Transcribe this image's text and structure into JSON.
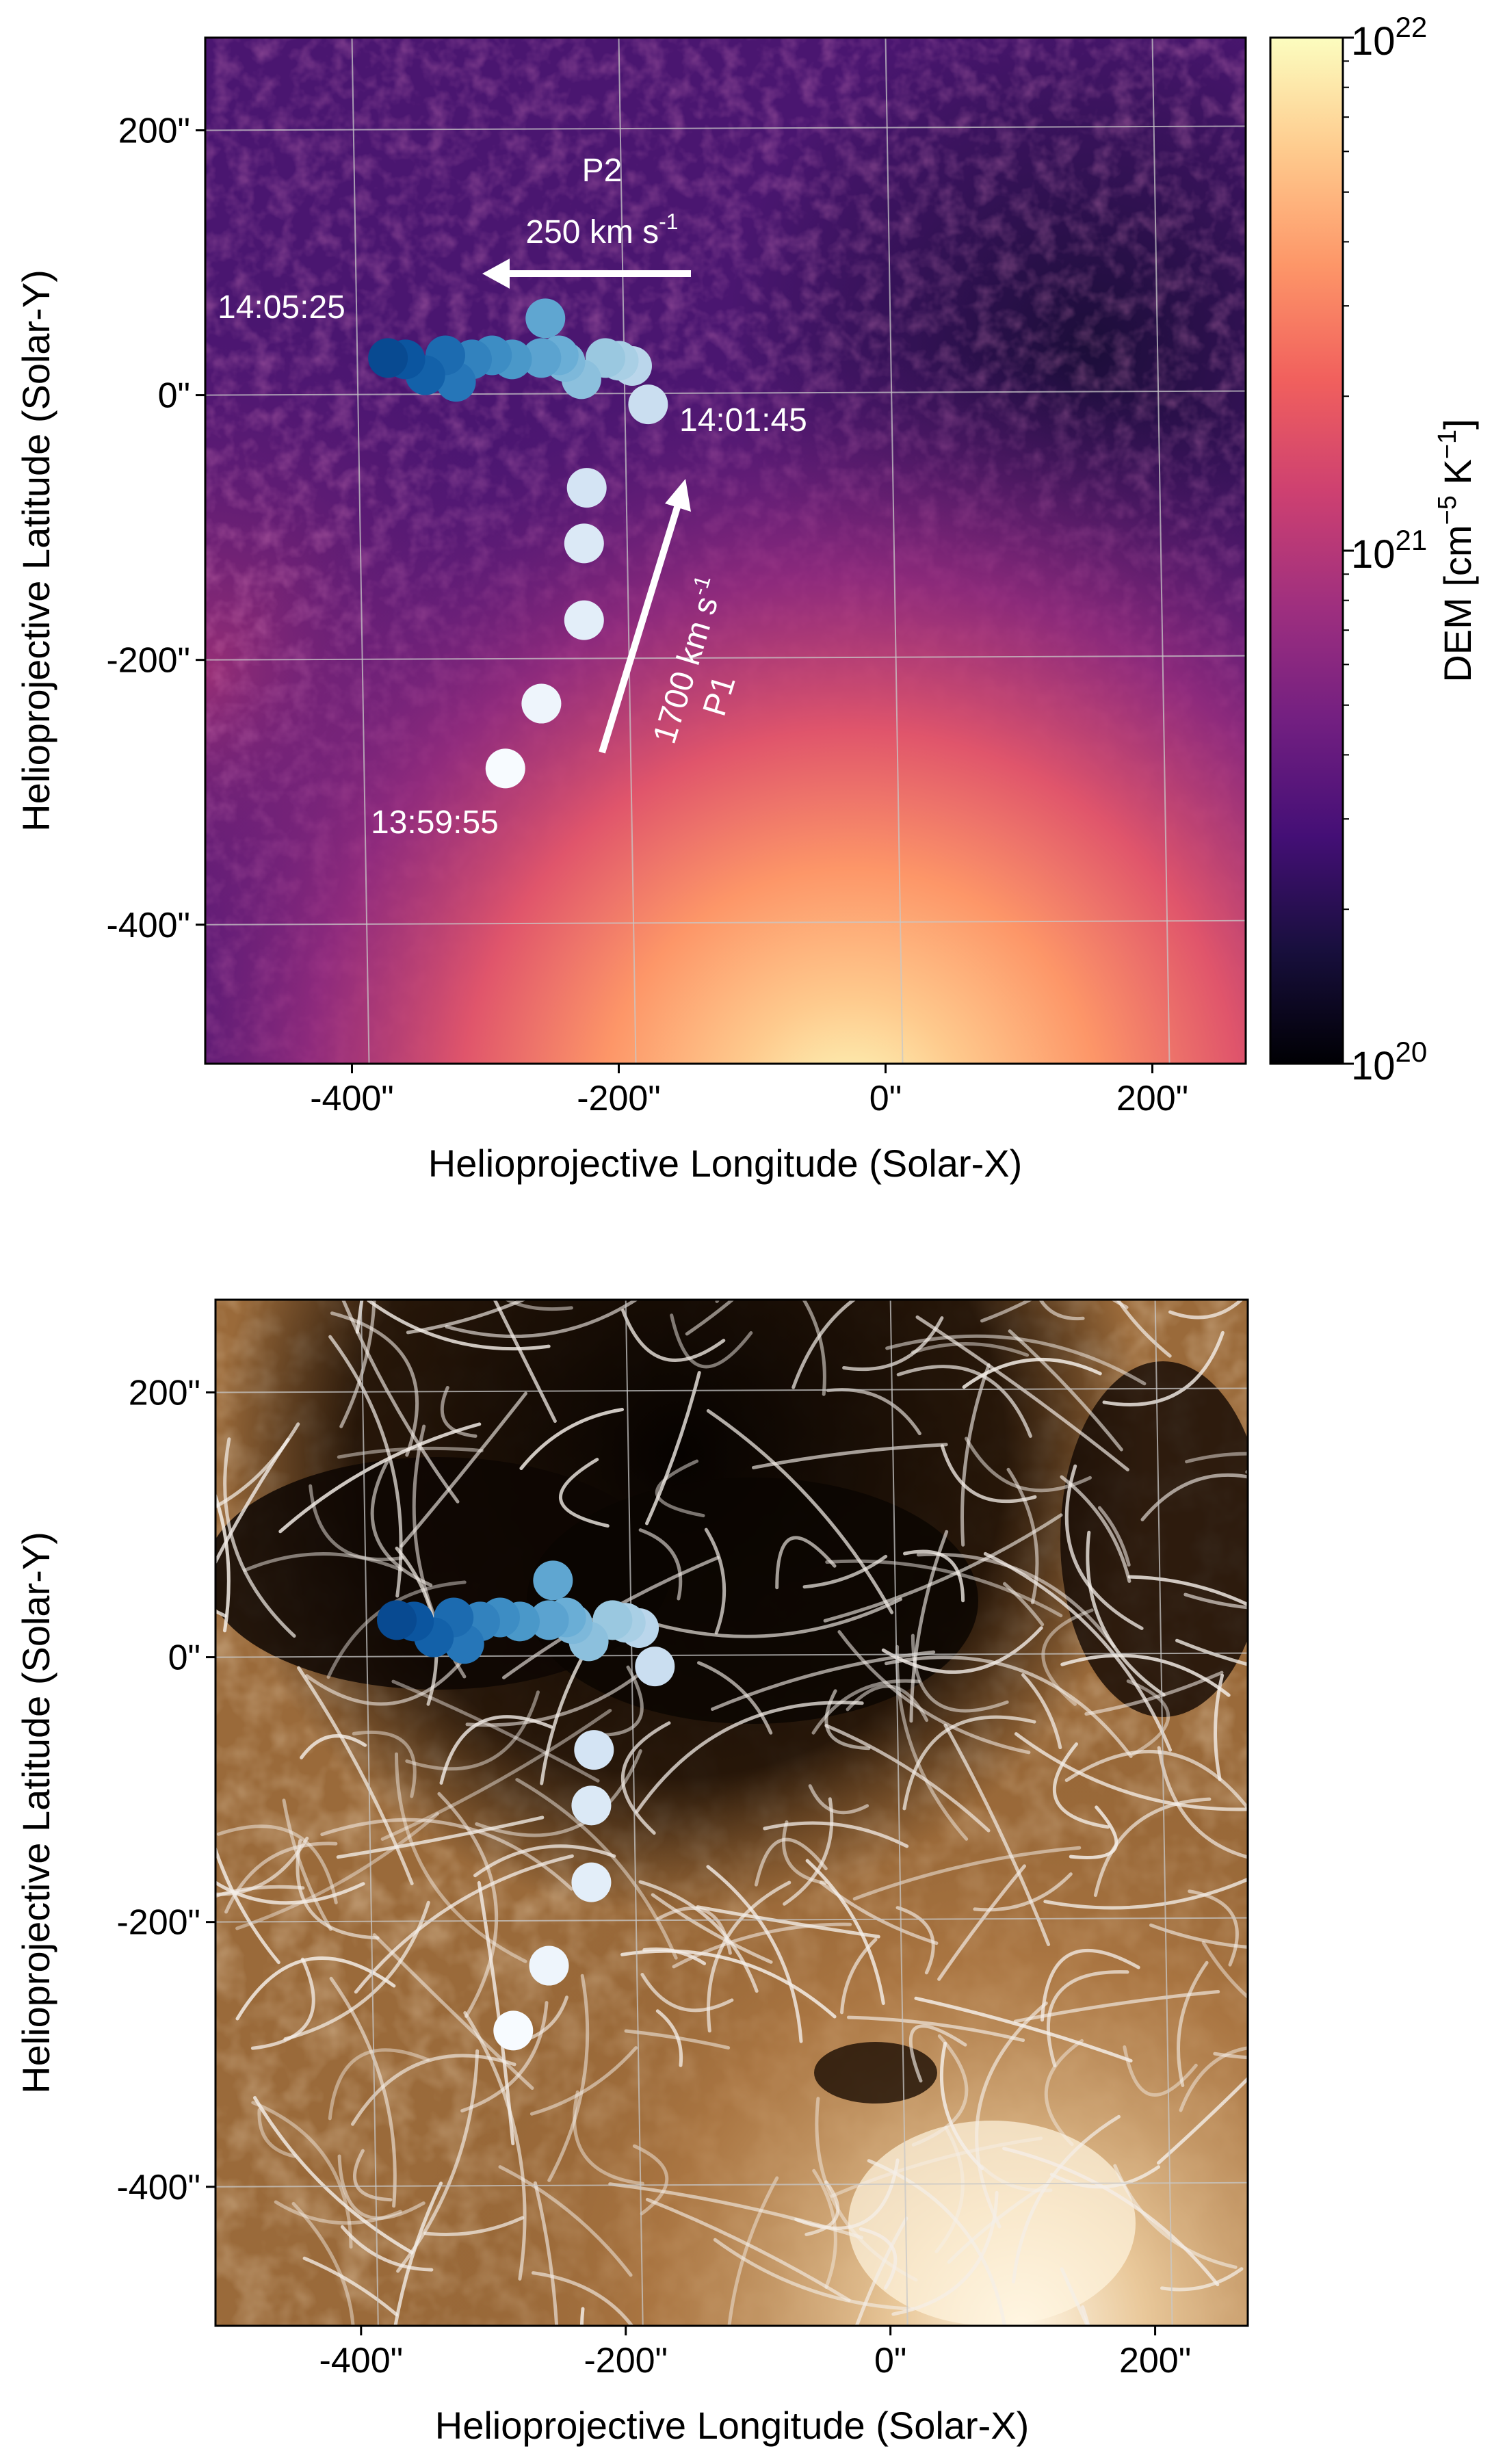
{
  "chart_data": [
    {
      "type": "scatter",
      "panel": "top",
      "background": "DEM map (magma colormap)",
      "xlabel": "Helioprojective Longitude (Solar-X)",
      "ylabel": "Helioprojective Latitude (Solar-Y)",
      "xlim": [
        -510,
        270
      ],
      "ylim": [
        -505,
        270
      ],
      "xticks": [
        -400,
        -200,
        0,
        200
      ],
      "xtick_labels": [
        "-400\"",
        "-200\"",
        "0\"",
        "200\""
      ],
      "yticks": [
        200,
        0,
        -200,
        -400
      ],
      "ytick_labels": [
        "200\"",
        "0\"",
        "-200\"",
        "-400\""
      ],
      "grid": true,
      "colorbar": {
        "label": "DEM [cm",
        "label_exp": "−5",
        "label_mid": " K",
        "label_exp2": "−1",
        "label_end": "]",
        "scale": "log",
        "min_label_base": "10",
        "min_label_exp": "20",
        "mid_label_base": "10",
        "mid_label_exp": "21",
        "max_label_base": "10",
        "max_label_exp": "22",
        "min": 1e+20,
        "max": 1e+22,
        "colors": [
          "#000004",
          "#180f3d",
          "#440f76",
          "#721f81",
          "#9e2f7f",
          "#cd4071",
          "#f1605d",
          "#fd9668",
          "#feca8d",
          "#fcfdbf"
        ]
      },
      "series": [
        {
          "x": [
            -285,
            -258,
            -226,
            -226,
            -224,
            -178,
            -190,
            -200,
            -210,
            -228,
            -240,
            -245,
            -258,
            -280,
            -295,
            -310,
            -322,
            -330,
            -345,
            -360,
            -373,
            -255
          ],
          "y": [
            -282,
            -233,
            -170,
            -112,
            -70,
            -7,
            22,
            26,
            28,
            12,
            25,
            30,
            28,
            27,
            30,
            27,
            10,
            30,
            15,
            27,
            28,
            58
          ],
          "colors": [
            "#f7fbff",
            "#eef5fc",
            "#e3eef9",
            "#dbe9f6",
            "#d4e4f4",
            "#cadef0",
            "#bad6eb",
            "#a9cfe5",
            "#9ac8e0",
            "#8cc0dd",
            "#7db8da",
            "#6aaed6",
            "#5ba3d0",
            "#4a98c9",
            "#3d8dc4",
            "#3282be",
            "#2676b8",
            "#1c6bb0",
            "#1361a9",
            "#0b559f",
            "#084a91",
            "#5fa6d1"
          ]
        }
      ],
      "annotations": [
        {
          "text": "P2"
        },
        {
          "text": "250 km s",
          "sup": "-1"
        },
        {
          "text": "14:05:25"
        },
        {
          "text": "14:01:45"
        },
        {
          "text": "13:59:55"
        },
        {
          "text": "1700 km s",
          "sup": "-1"
        },
        {
          "text": "P1"
        }
      ]
    },
    {
      "type": "scatter",
      "panel": "bottom",
      "background": "EUV image with magnetic field lines",
      "xlabel": "Helioprojective Longitude (Solar-X)",
      "ylabel": "Helioprojective Latitude (Solar-Y)",
      "xlim": [
        -510,
        270
      ],
      "ylim": [
        -505,
        270
      ],
      "xticks": [
        -400,
        -200,
        0,
        200
      ],
      "xtick_labels": [
        "-400\"",
        "-200\"",
        "0\"",
        "200\""
      ],
      "yticks": [
        200,
        0,
        -200,
        -400
      ],
      "ytick_labels": [
        "200\"",
        "0\"",
        "-200\"",
        "-400\""
      ],
      "grid": true,
      "series": [
        {
          "x": [
            -285,
            -258,
            -226,
            -226,
            -224,
            -178,
            -190,
            -200,
            -210,
            -228,
            -240,
            -245,
            -258,
            -280,
            -295,
            -310,
            -322,
            -330,
            -345,
            -360,
            -373,
            -255
          ],
          "y": [
            -282,
            -233,
            -170,
            -112,
            -70,
            -7,
            22,
            26,
            28,
            12,
            25,
            30,
            28,
            27,
            30,
            27,
            10,
            30,
            15,
            27,
            28,
            58
          ],
          "colors": [
            "#f7fbff",
            "#eef5fc",
            "#e3eef9",
            "#dbe9f6",
            "#d4e4f4",
            "#cadef0",
            "#bad6eb",
            "#a9cfe5",
            "#9ac8e0",
            "#8cc0dd",
            "#7db8da",
            "#6aaed6",
            "#5ba3d0",
            "#4a98c9",
            "#3d8dc4",
            "#3282be",
            "#2676b8",
            "#1c6bb0",
            "#1361a9",
            "#0b559f",
            "#084a91",
            "#5fa6d1"
          ]
        }
      ]
    }
  ]
}
